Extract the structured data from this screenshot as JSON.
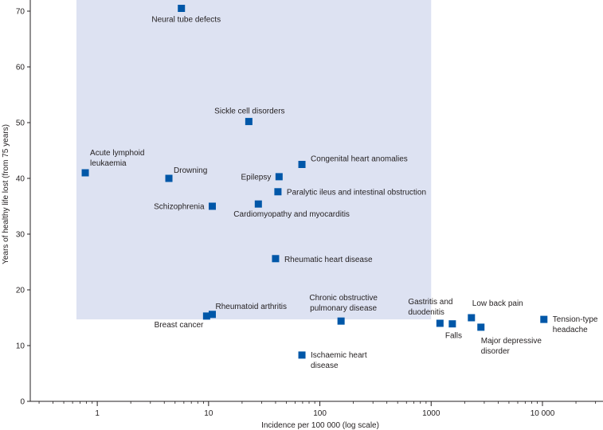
{
  "chart_data": {
    "type": "scatter",
    "title": "",
    "xlabel": "Incidence per 100 000 (log scale)",
    "ylabel": "Years of healthy life lost (from 75 years)",
    "xscale": "log",
    "xlim": [
      0.25,
      35000
    ],
    "ylim": [
      0,
      72
    ],
    "x_ticks": [
      1,
      10,
      100,
      1000,
      10000
    ],
    "x_tick_labels": [
      "1",
      "10",
      "100",
      "1000",
      "10 000"
    ],
    "y_ticks": [
      0,
      10,
      20,
      30,
      40,
      50,
      60,
      70
    ],
    "y_tick_labels": [
      "0",
      "10",
      "20",
      "30",
      "40",
      "50",
      "60",
      "70"
    ],
    "highlight_region": {
      "x_range": [
        0.65,
        1000
      ],
      "y_range": [
        14.7,
        72
      ],
      "color": "#dde2f2"
    },
    "marker_color": "#0057a8",
    "points": [
      {
        "name": "Neural tube defects",
        "label_lines": [
          "Neural tube defects"
        ],
        "x": 5.7,
        "y": 70.5
      },
      {
        "name": "Sickle cell disorders",
        "label_lines": [
          "Sickle cell disorders"
        ],
        "x": 23,
        "y": 50.2
      },
      {
        "name": "Acute lymphoid leukaemia",
        "label_lines": [
          "Acute lymphoid",
          "leukaemia"
        ],
        "x": 0.78,
        "y": 41
      },
      {
        "name": "Drowning",
        "label_lines": [
          "Drowning"
        ],
        "x": 4.4,
        "y": 40
      },
      {
        "name": "Congenital heart anomalies",
        "label_lines": [
          "Congenital heart anomalies"
        ],
        "x": 69,
        "y": 42.5
      },
      {
        "name": "Epilepsy",
        "label_lines": [
          "Epilepsy"
        ],
        "x": 43,
        "y": 40.3
      },
      {
        "name": "Paralytic ileus and intestinal obstruction",
        "label_lines": [
          "Paralytic ileus and intestinal obstruction"
        ],
        "x": 42,
        "y": 37.6
      },
      {
        "name": "Schizophrenia",
        "label_lines": [
          "Schizophrenia"
        ],
        "x": 10.8,
        "y": 35
      },
      {
        "name": "Cardiomyopathy and myocarditis",
        "label_lines": [
          "Cardiomyopathy and myocarditis"
        ],
        "x": 28,
        "y": 35.4
      },
      {
        "name": "Rheumatic heart disease",
        "label_lines": [
          "Rheumatic heart disease"
        ],
        "x": 40,
        "y": 25.6
      },
      {
        "name": "Rheumatoid arthritis",
        "label_lines": [
          "Rheumatoid arthritis"
        ],
        "x": 10.8,
        "y": 15.6
      },
      {
        "name": "Breast cancer",
        "label_lines": [
          "Breast cancer"
        ],
        "x": 9.6,
        "y": 15.3
      },
      {
        "name": "Chronic obstructive pulmonary disease",
        "label_lines": [
          "Chronic obstructive",
          "pulmonary disease"
        ],
        "x": 155,
        "y": 14.4
      },
      {
        "name": "Ischaemic heart disease",
        "label_lines": [
          "Ischaemic heart",
          "disease"
        ],
        "x": 69,
        "y": 8.3
      },
      {
        "name": "Gastritis and duodenitis",
        "label_lines": [
          "Gastritis and",
          "duodenitis"
        ],
        "x": 1200,
        "y": 14
      },
      {
        "name": "Falls",
        "label_lines": [
          "Falls"
        ],
        "x": 1550,
        "y": 13.9
      },
      {
        "name": "Low back pain",
        "label_lines": [
          "Low back pain"
        ],
        "x": 2300,
        "y": 15
      },
      {
        "name": "Major depressive disorder",
        "label_lines": [
          "Major depressive",
          "disorder"
        ],
        "x": 2800,
        "y": 13.3
      },
      {
        "name": "Tension-type headache",
        "label_lines": [
          "Tension-type",
          "headache"
        ],
        "x": 10300,
        "y": 14.7
      }
    ]
  }
}
